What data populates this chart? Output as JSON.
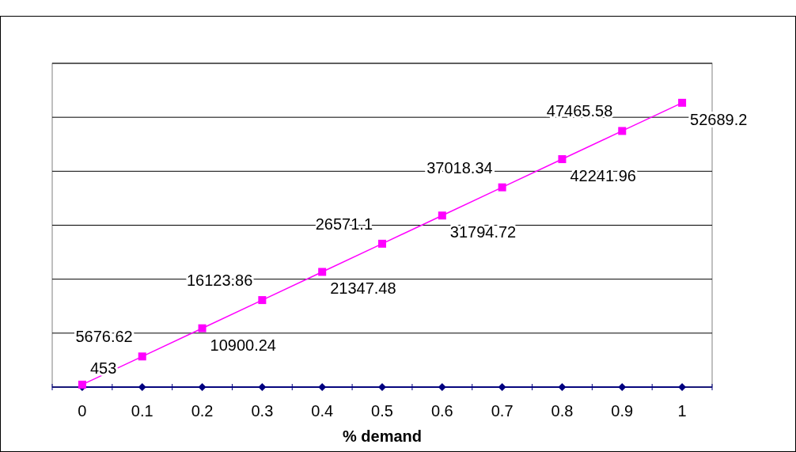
{
  "chart_data": {
    "type": "line",
    "xlabel": "% demand",
    "categories": [
      "0",
      "0.1",
      "0.2",
      "0.3",
      "0.4",
      "0.5",
      "0.6",
      "0.7",
      "0.8",
      "0.9",
      "1"
    ],
    "ylim": [
      0,
      60000
    ],
    "yticks": [
      {
        "value": 0,
        "label": null
      },
      {
        "value": 10000,
        "label": null
      },
      {
        "value": 20000,
        "label": null
      },
      {
        "value": 30000,
        "label": null
      },
      {
        "value": 40000,
        "label": null
      },
      {
        "value": 50000,
        "label": null
      },
      {
        "value": 60000,
        "label": null
      }
    ],
    "tick_labels": "x",
    "grid": "y",
    "series": [
      {
        "color": "#000080",
        "marker": "diamond",
        "values": [
          0,
          0,
          0,
          0,
          0,
          0,
          0,
          0,
          0,
          0,
          0
        ]
      },
      {
        "color": "#ff00ff",
        "marker": "square",
        "values": [
          453,
          5676.62,
          10900.24,
          16123.86,
          21347.48,
          26571.1,
          31794.72,
          37018.34,
          42241.96,
          47465.58,
          52689.2
        ],
        "value_labels": [
          "453",
          "5676.62",
          "10900.24",
          "16123.86",
          "21347.48",
          "26571.1",
          "31794.72",
          "37018.34",
          "42241.96",
          "47465.58",
          "52689.2"
        ]
      }
    ]
  }
}
